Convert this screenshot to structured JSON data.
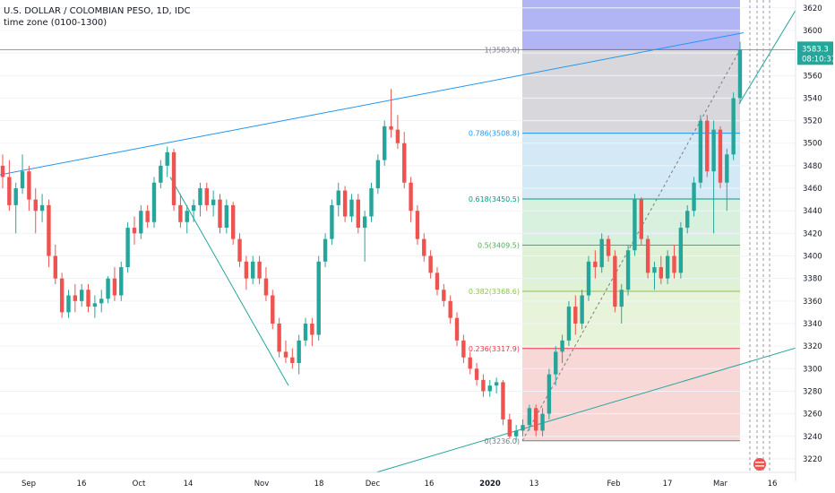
{
  "chart_data": {
    "type": "candlestick",
    "title": "U.S. DOLLAR / COLOMBIAN PESO, 1D, IDC",
    "subtitle": "time zone (0100-1300)",
    "y_ticks": [
      3220,
      3240,
      3260,
      3280,
      3300,
      3320,
      3340,
      3360,
      3380,
      3400,
      3420,
      3440,
      3460,
      3480,
      3500,
      3520,
      3540,
      3560,
      3580,
      3600,
      3620
    ],
    "ylim": [
      3208,
      3627
    ],
    "x_ticks": [
      {
        "label": "Sep",
        "bold": false
      },
      {
        "label": "16",
        "bold": false
      },
      {
        "label": "Oct",
        "bold": false
      },
      {
        "label": "14",
        "bold": false
      },
      {
        "label": "Nov",
        "bold": false
      },
      {
        "label": "18",
        "bold": false
      },
      {
        "label": "Dec",
        "bold": false
      },
      {
        "label": "16",
        "bold": false
      },
      {
        "label": "2020",
        "bold": true
      },
      {
        "label": "13",
        "bold": false
      },
      {
        "label": "Feb",
        "bold": false
      },
      {
        "label": "17",
        "bold": false
      },
      {
        "label": "Mar",
        "bold": false
      },
      {
        "label": "16",
        "bold": false
      }
    ],
    "last_price": "3583.3",
    "countdown": "08:10:31",
    "colors": {
      "up": "#26a69a",
      "down": "#ef5350",
      "trend": "#2196f3",
      "fib_line": "#787b86"
    },
    "fibonacci": {
      "levels": [
        {
          "label": "1(3583.0)",
          "price": 3583.0,
          "color": "#787b86",
          "band": "#b2b5f3"
        },
        {
          "label": "0.786(3508.8)",
          "price": 3508.8,
          "color": "#2196f3",
          "band": "#d4d4d8"
        },
        {
          "label": "0.618(3450.5)",
          "price": 3450.5,
          "color": "#089981",
          "band": "#cfe7f5"
        },
        {
          "label": "0.5(3409.5)",
          "price": 3409.5,
          "color": "#4caf50",
          "band": "#d4f0dc"
        },
        {
          "label": "0.382(3368.6)",
          "price": 3368.6,
          "color": "#8bc34a",
          "band": "#dcf1d4"
        },
        {
          "label": "0.236(3317.9)",
          "price": 3317.9,
          "color": "#f23645",
          "band": "#e6f3d5"
        },
        {
          "label": "0(3236.0)",
          "price": 3236.0,
          "color": "#787b86",
          "band": "#f7d3d3"
        }
      ],
      "top_band": 3627
    },
    "candles": [
      [
        3480,
        3490,
        3460,
        3470
      ],
      [
        3470,
        3485,
        3440,
        3445
      ],
      [
        3445,
        3465,
        3420,
        3460
      ],
      [
        3460,
        3490,
        3455,
        3475
      ],
      [
        3475,
        3480,
        3440,
        3450
      ],
      [
        3450,
        3460,
        3420,
        3440
      ],
      [
        3440,
        3455,
        3430,
        3445
      ],
      [
        3445,
        3450,
        3390,
        3400
      ],
      [
        3400,
        3410,
        3375,
        3380
      ],
      [
        3380,
        3385,
        3345,
        3350
      ],
      [
        3350,
        3370,
        3345,
        3365
      ],
      [
        3365,
        3375,
        3350,
        3360
      ],
      [
        3360,
        3375,
        3355,
        3370
      ],
      [
        3370,
        3375,
        3350,
        3355
      ],
      [
        3355,
        3365,
        3345,
        3358
      ],
      [
        3358,
        3370,
        3350,
        3362
      ],
      [
        3362,
        3382,
        3358,
        3380
      ],
      [
        3380,
        3390,
        3360,
        3365
      ],
      [
        3365,
        3395,
        3360,
        3390
      ],
      [
        3390,
        3430,
        3385,
        3425
      ],
      [
        3425,
        3435,
        3410,
        3420
      ],
      [
        3420,
        3445,
        3415,
        3440
      ],
      [
        3440,
        3445,
        3425,
        3430
      ],
      [
        3430,
        3470,
        3425,
        3465
      ],
      [
        3465,
        3485,
        3460,
        3480
      ],
      [
        3480,
        3497,
        3470,
        3492
      ],
      [
        3492,
        3495,
        3440,
        3445
      ],
      [
        3445,
        3455,
        3425,
        3430
      ],
      [
        3430,
        3445,
        3420,
        3440
      ],
      [
        3440,
        3450,
        3430,
        3445
      ],
      [
        3445,
        3465,
        3435,
        3460
      ],
      [
        3460,
        3465,
        3440,
        3445
      ],
      [
        3445,
        3458,
        3435,
        3450
      ],
      [
        3450,
        3455,
        3420,
        3425
      ],
      [
        3425,
        3450,
        3420,
        3445
      ],
      [
        3445,
        3448,
        3410,
        3415
      ],
      [
        3415,
        3420,
        3390,
        3395
      ],
      [
        3395,
        3400,
        3370,
        3380
      ],
      [
        3380,
        3400,
        3375,
        3395
      ],
      [
        3395,
        3400,
        3375,
        3380
      ],
      [
        3380,
        3390,
        3360,
        3365
      ],
      [
        3365,
        3370,
        3335,
        3340
      ],
      [
        3340,
        3345,
        3310,
        3315
      ],
      [
        3315,
        3325,
        3305,
        3310
      ],
      [
        3310,
        3318,
        3300,
        3305
      ],
      [
        3305,
        3330,
        3295,
        3325
      ],
      [
        3325,
        3345,
        3320,
        3340
      ],
      [
        3340,
        3345,
        3320,
        3330
      ],
      [
        3330,
        3400,
        3325,
        3395
      ],
      [
        3395,
        3420,
        3390,
        3415
      ],
      [
        3415,
        3450,
        3410,
        3445
      ],
      [
        3445,
        3465,
        3435,
        3458
      ],
      [
        3458,
        3462,
        3430,
        3435
      ],
      [
        3435,
        3455,
        3430,
        3450
      ],
      [
        3450,
        3455,
        3420,
        3425
      ],
      [
        3425,
        3440,
        3395,
        3435
      ],
      [
        3435,
        3465,
        3430,
        3460
      ],
      [
        3460,
        3490,
        3455,
        3485
      ],
      [
        3485,
        3520,
        3480,
        3515
      ],
      [
        3515,
        3548,
        3505,
        3512
      ],
      [
        3512,
        3525,
        3495,
        3500
      ],
      [
        3500,
        3510,
        3460,
        3465
      ],
      [
        3465,
        3470,
        3430,
        3440
      ],
      [
        3440,
        3445,
        3410,
        3415
      ],
      [
        3415,
        3420,
        3395,
        3400
      ],
      [
        3400,
        3405,
        3380,
        3385
      ],
      [
        3385,
        3390,
        3365,
        3370
      ],
      [
        3370,
        3375,
        3355,
        3360
      ],
      [
        3360,
        3365,
        3340,
        3345
      ],
      [
        3345,
        3350,
        3320,
        3325
      ],
      [
        3325,
        3330,
        3305,
        3310
      ],
      [
        3310,
        3315,
        3295,
        3300
      ],
      [
        3300,
        3305,
        3285,
        3290
      ],
      [
        3290,
        3295,
        3275,
        3280
      ],
      [
        3280,
        3290,
        3275,
        3285
      ],
      [
        3285,
        3292,
        3278,
        3288
      ],
      [
        3288,
        3290,
        3250,
        3255
      ],
      [
        3255,
        3260,
        3238,
        3240
      ],
      [
        3240,
        3250,
        3235,
        3245
      ],
      [
        3245,
        3255,
        3240,
        3250
      ],
      [
        3250,
        3268,
        3245,
        3265
      ],
      [
        3265,
        3268,
        3240,
        3245
      ],
      [
        3245,
        3265,
        3240,
        3260
      ],
      [
        3260,
        3300,
        3255,
        3295
      ],
      [
        3295,
        3320,
        3285,
        3315
      ],
      [
        3315,
        3330,
        3305,
        3325
      ],
      [
        3325,
        3360,
        3320,
        3355
      ],
      [
        3355,
        3365,
        3330,
        3340
      ],
      [
        3340,
        3370,
        3335,
        3365
      ],
      [
        3365,
        3400,
        3360,
        3395
      ],
      [
        3395,
        3405,
        3380,
        3390
      ],
      [
        3390,
        3420,
        3385,
        3415
      ],
      [
        3415,
        3418,
        3395,
        3400
      ],
      [
        3400,
        3405,
        3350,
        3355
      ],
      [
        3355,
        3375,
        3340,
        3370
      ],
      [
        3370,
        3410,
        3365,
        3405
      ],
      [
        3405,
        3455,
        3400,
        3450
      ],
      [
        3450,
        3452,
        3410,
        3415
      ],
      [
        3415,
        3418,
        3380,
        3385
      ],
      [
        3385,
        3395,
        3370,
        3390
      ],
      [
        3390,
        3400,
        3375,
        3380
      ],
      [
        3380,
        3405,
        3375,
        3400
      ],
      [
        3400,
        3410,
        3380,
        3385
      ],
      [
        3385,
        3430,
        3380,
        3425
      ],
      [
        3425,
        3445,
        3420,
        3440
      ],
      [
        3440,
        3470,
        3435,
        3465
      ],
      [
        3465,
        3525,
        3460,
        3520
      ],
      [
        3520,
        3525,
        3470,
        3475
      ],
      [
        3475,
        3520,
        3420,
        3512
      ],
      [
        3512,
        3515,
        3460,
        3465
      ],
      [
        3465,
        3495,
        3440,
        3490
      ],
      [
        3490,
        3545,
        3485,
        3540
      ],
      [
        3540,
        3590,
        3535,
        3583
      ]
    ]
  }
}
